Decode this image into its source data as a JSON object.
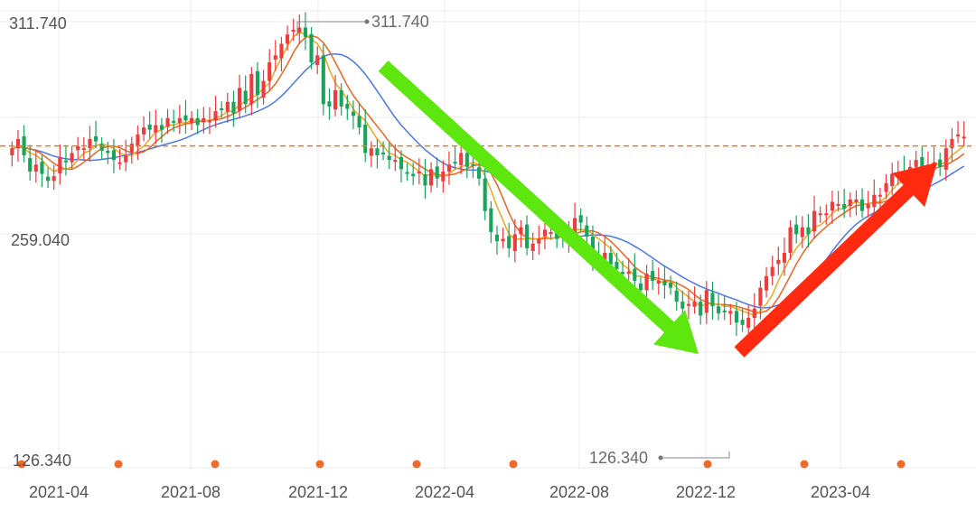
{
  "chart_data": {
    "type": "candlestick",
    "x_tick_labels": [
      "2021-04",
      "2021-08",
      "2021-12",
      "2022-04",
      "2022-08",
      "2022-12",
      "2023-04"
    ],
    "ylim": [
      126.34,
      311.74
    ],
    "y_tick_labels": [
      "311.740",
      "126.340"
    ],
    "reference_line": {
      "value": 259.04,
      "label": "259.040",
      "color": "#f07a2a"
    },
    "annotations": {
      "max": {
        "value": 311.74,
        "label": "311.740"
      },
      "min": {
        "value": 126.34,
        "label": "126.340"
      }
    },
    "colors": {
      "up": "#ee3b3b",
      "down": "#19a45b",
      "ma_short": "#f3a51c",
      "ma_mid": "#f0641e",
      "ma_long": "#4a78f0",
      "trend_down_arrow": "#5ee60f",
      "trend_up_arrow": "#ff2a10",
      "event_marker": "#f06a2a",
      "grid": "#eeeeee",
      "axis_text": "#555555"
    },
    "trend_arrows": [
      "down",
      "up"
    ],
    "event_markers_count": 9,
    "closes": [
      258,
      262,
      255,
      248,
      251,
      247,
      244,
      246,
      254,
      252,
      256,
      259,
      258,
      262,
      261,
      257,
      256,
      253,
      252,
      255,
      260,
      264,
      267,
      266,
      268,
      266,
      271,
      269,
      271,
      270,
      271,
      268,
      271,
      270,
      274,
      275,
      278,
      273,
      284,
      277,
      290,
      281,
      287,
      295,
      298,
      303,
      307,
      309,
      310,
      306,
      295,
      298,
      277,
      276,
      283,
      276,
      275,
      272,
      267,
      256,
      258,
      255,
      256,
      253,
      253,
      249,
      247,
      246,
      248,
      242,
      249,
      245,
      248,
      251,
      252,
      256,
      250,
      251,
      245,
      231,
      222,
      218,
      219,
      215,
      221,
      224,
      215,
      217,
      219,
      223,
      222,
      219,
      220,
      221,
      228,
      226,
      220,
      211,
      211,
      213,
      208,
      206,
      204,
      205,
      201,
      197,
      204,
      201,
      201,
      199,
      198,
      192,
      189,
      191,
      192,
      186,
      197,
      190,
      187,
      188,
      188,
      183,
      182,
      185,
      189,
      198,
      203,
      207,
      210,
      213,
      224,
      221,
      224,
      221,
      231,
      230,
      230,
      235,
      234,
      232,
      236,
      236,
      231,
      234,
      238,
      238,
      243,
      247,
      247,
      244,
      250,
      253,
      249,
      251,
      252,
      250,
      258,
      262,
      264,
      263
    ],
    "ma_short": [
      258,
      259,
      258,
      256,
      255,
      253,
      250,
      248,
      249,
      249,
      250,
      253,
      256,
      257,
      259,
      260,
      259,
      258,
      256,
      255,
      255,
      257,
      259,
      262,
      265,
      266,
      268,
      268,
      269,
      269,
      270,
      270,
      270,
      270,
      271,
      272,
      274,
      274,
      277,
      278,
      280,
      281,
      284,
      286,
      292,
      297,
      302,
      306,
      308,
      307,
      305,
      303,
      299,
      292,
      286,
      283,
      279,
      275,
      272,
      270,
      266,
      262,
      259,
      256,
      255,
      253,
      252,
      250,
      248,
      246,
      247,
      246,
      246,
      247,
      249,
      250,
      251,
      252,
      251,
      246,
      240,
      233,
      227,
      221,
      219,
      219,
      219,
      219,
      219,
      220,
      219,
      220,
      221,
      221,
      223,
      223,
      223,
      221,
      219,
      217,
      215,
      211,
      208,
      206,
      203,
      203,
      202,
      202,
      201,
      200,
      201,
      198,
      196,
      194,
      192,
      190,
      191,
      191,
      191,
      190,
      190,
      189,
      188,
      187,
      186,
      188,
      191,
      195,
      201,
      206,
      211,
      215,
      218,
      221,
      224,
      225,
      227,
      230,
      232,
      232,
      234,
      235,
      234,
      234,
      235,
      235,
      237,
      240,
      243,
      244,
      246,
      248,
      249,
      249,
      251,
      251,
      252,
      255,
      257,
      259
    ]
  }
}
